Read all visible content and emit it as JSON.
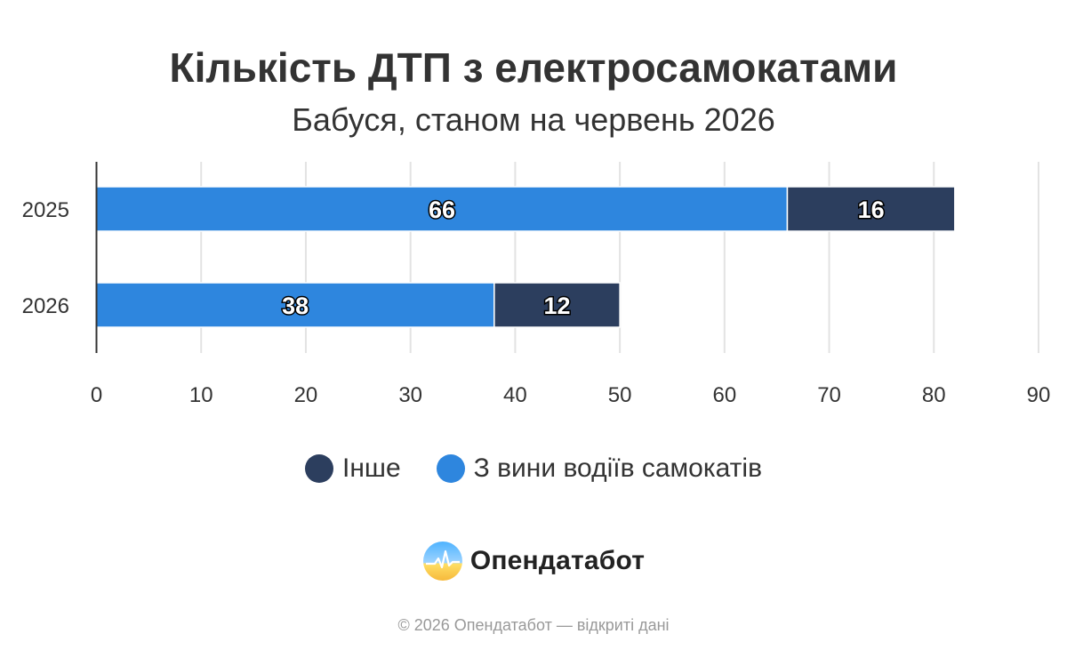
{
  "header": {
    "title": "Кількість ДТП з електросамокатами",
    "subtitle": "Бабуся, станом на червень 2026"
  },
  "chart_data": {
    "type": "bar",
    "orientation": "horizontal",
    "stacked": true,
    "categories": [
      "2025",
      "2026"
    ],
    "series": [
      {
        "name": "З вини водіїв самокатів",
        "values": [
          66,
          38
        ],
        "color": "#2e86de"
      },
      {
        "name": "Інше",
        "values": [
          16,
          12
        ],
        "color": "#2c3e5e"
      }
    ],
    "xlim": [
      0,
      90
    ],
    "xticks": [
      0,
      10,
      20,
      30,
      40,
      50,
      60,
      70,
      80,
      90
    ],
    "grid": true,
    "legend_position": "bottom"
  },
  "legend": {
    "items": [
      {
        "label": "Інше",
        "color": "#2c3e5e"
      },
      {
        "label": "З вини водіїв самокатів",
        "color": "#2e86de"
      }
    ]
  },
  "brand": {
    "name": "Опендатабот",
    "logo_icon": "sunrise-logo-icon"
  },
  "footer": {
    "copyright": "© 2026 Опендатабот — відкриті дані"
  }
}
